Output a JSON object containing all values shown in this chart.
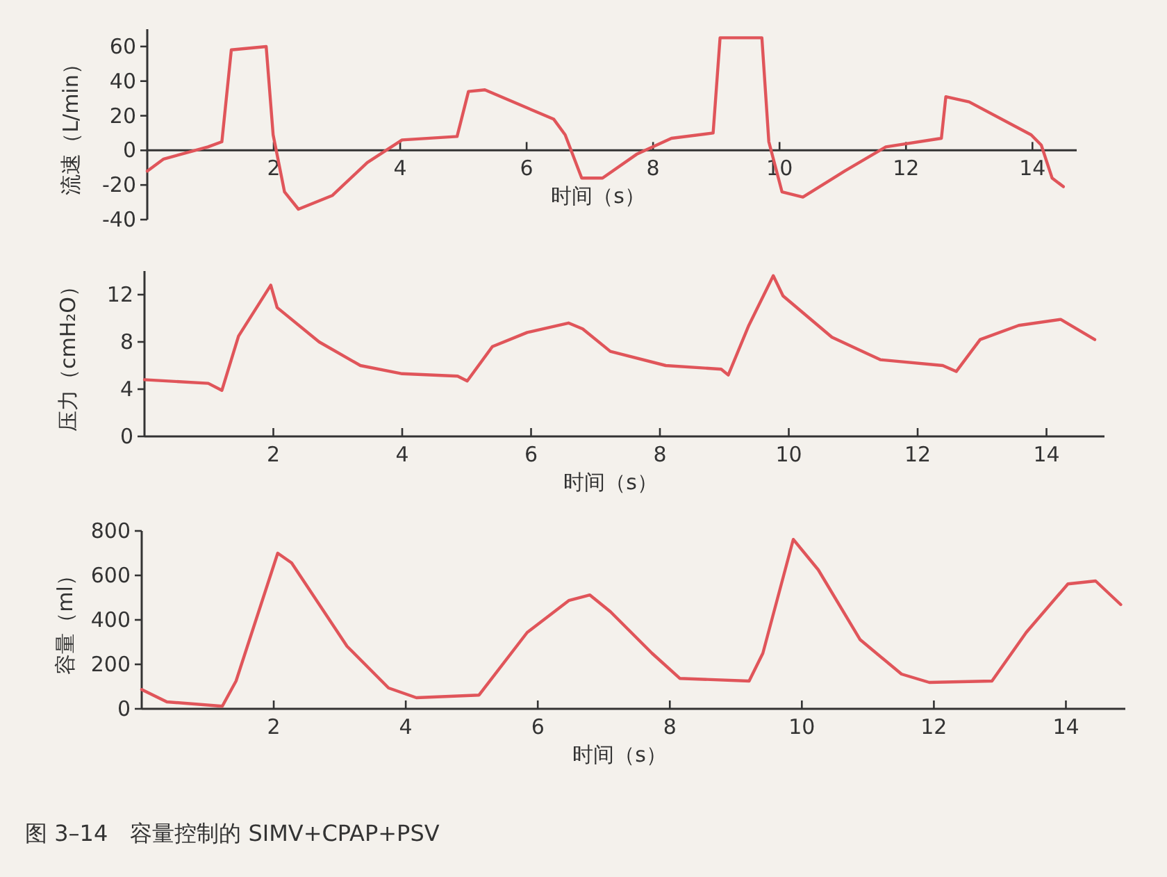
{
  "chart_data": [
    {
      "type": "line",
      "ylabel": "流速（L/min）",
      "xlabel": "时间（s）",
      "xlim": [
        0,
        14.7
      ],
      "ylim": [
        -40,
        70
      ],
      "xticks": [
        2,
        4,
        6,
        8,
        10,
        12,
        14
      ],
      "yticks": [
        -40,
        -20,
        0,
        20,
        40,
        60
      ],
      "series": [
        {
          "color": "#e0555a",
          "x": [
            0,
            0.26,
            0.96,
            1.18,
            1.33,
            1.88,
            1.99,
            2.17,
            2.39,
            2.93,
            3.48,
            4.03,
            4.9,
            5.08,
            5.34,
            6.43,
            6.61,
            6.87,
            7.2,
            7.75,
            8.29,
            8.95,
            9.06,
            9.72,
            9.83,
            10.04,
            10.37,
            11.03,
            11.68,
            12.56,
            12.63,
            13.0,
            13.98,
            14.14,
            14.31,
            14.49
          ],
          "values": [
            -12,
            -5,
            2,
            5,
            58,
            60,
            9,
            -24,
            -34,
            -26,
            -7,
            6,
            8,
            34,
            35,
            18,
            9,
            -16,
            -16,
            -2,
            7,
            10,
            65,
            65,
            5,
            -24,
            -27,
            -12,
            2,
            7,
            31,
            28,
            9,
            3,
            -16,
            -21
          ]
        }
      ]
    },
    {
      "type": "line",
      "ylabel": "压力（cmH₂O）",
      "xlabel": "时间（s）",
      "xlim": [
        0,
        14.9
      ],
      "ylim": [
        0,
        14
      ],
      "xticks": [
        2,
        4,
        6,
        8,
        10,
        12,
        14
      ],
      "yticks": [
        0,
        4,
        8,
        12
      ],
      "series": [
        {
          "color": "#e0555a",
          "x": [
            0,
            0.99,
            1.2,
            1.46,
            1.96,
            2.06,
            2.71,
            3.35,
            4.0,
            4.86,
            5.01,
            5.4,
            5.94,
            6.58,
            6.8,
            7.23,
            8.09,
            8.95,
            9.06,
            9.38,
            9.76,
            9.91,
            10.67,
            11.42,
            12.39,
            12.6,
            12.97,
            13.57,
            14.22,
            14.75
          ],
          "values": [
            4.8,
            4.5,
            3.9,
            8.5,
            12.8,
            10.9,
            8,
            6,
            5.3,
            5.1,
            4.7,
            7.6,
            8.8,
            9.6,
            9.1,
            7.2,
            6,
            5.7,
            5.2,
            9.4,
            13.6,
            11.9,
            8.4,
            6.5,
            6,
            5.5,
            8.2,
            9.4,
            9.9,
            8.2
          ]
        }
      ]
    },
    {
      "type": "line",
      "ylabel": "容量（ml）",
      "xlabel": "时间（s）",
      "xlim": [
        0,
        14.9
      ],
      "ylim": [
        0,
        800
      ],
      "xticks": [
        2,
        4,
        6,
        8,
        10,
        12,
        14
      ],
      "yticks": [
        0,
        200,
        400,
        600,
        800
      ],
      "annotations": [
        "图 3–14　容量控制的 SIMV+CPAP+PSV"
      ],
      "series": [
        {
          "color": "#e0555a",
          "x": [
            0,
            0.38,
            1.22,
            1.43,
            2.06,
            2.27,
            3.11,
            3.74,
            4.16,
            5.11,
            5.84,
            6.47,
            6.79,
            7.1,
            7.73,
            8.15,
            9.2,
            9.41,
            9.87,
            10.25,
            10.88,
            11.51,
            11.93,
            12.88,
            13.4,
            14.03,
            14.45,
            14.83
          ],
          "values": [
            87,
            31,
            12,
            125,
            700,
            656,
            281,
            94,
            50,
            62,
            344,
            487,
            512,
            437,
            250,
            137,
            125,
            250,
            762,
            625,
            312,
            156,
            119,
            125,
            344,
            562,
            575,
            469
          ]
        }
      ]
    }
  ]
}
